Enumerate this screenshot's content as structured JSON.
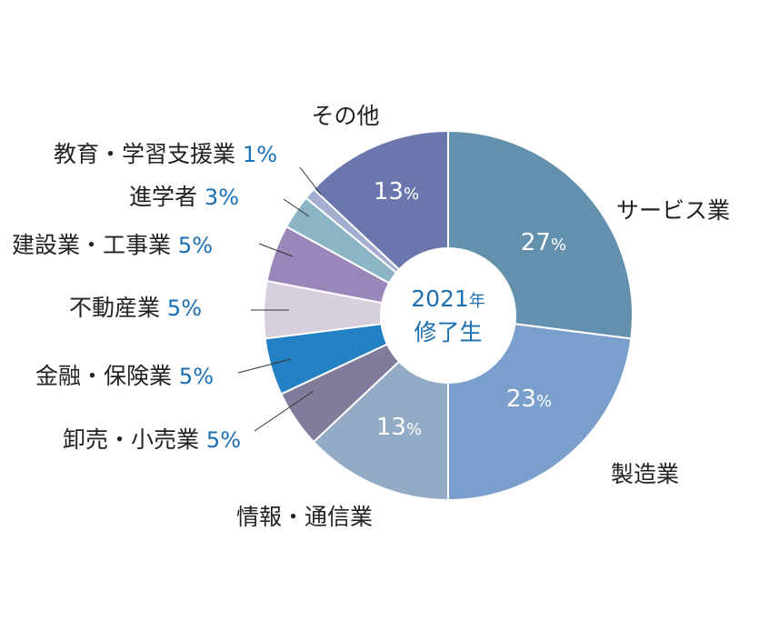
{
  "chart_data": {
    "type": "pie",
    "center_label": {
      "year": "2021",
      "year_suffix": "年",
      "line2": "修了生"
    },
    "slices": [
      {
        "label": "サービス業",
        "value": 27,
        "color": "#6290ad",
        "label_pos": "inside"
      },
      {
        "label": "製造業",
        "value": 23,
        "color": "#7b9fcc",
        "label_pos": "inside"
      },
      {
        "label": "情報・通信業",
        "value": 13,
        "color": "#93abc5",
        "label_pos": "inside"
      },
      {
        "label": "卸売・小売業",
        "value": 5,
        "color": "#837b9b",
        "label_pos": "outside"
      },
      {
        "label": "金融・保険業",
        "value": 5,
        "color": "#2280c3",
        "label_pos": "outside"
      },
      {
        "label": "不動産業",
        "value": 5,
        "color": "#d7d0dc",
        "label_pos": "outside"
      },
      {
        "label": "建設業・工事業",
        "value": 5,
        "color": "#9b86ba",
        "label_pos": "outside"
      },
      {
        "label": "進学者",
        "value": 3,
        "color": "#8bb4c5",
        "label_pos": "outside"
      },
      {
        "label": "教育・学習支援業",
        "value": 1,
        "color": "#a3aed0",
        "label_pos": "outside"
      },
      {
        "label": "その他",
        "value": 13,
        "color": "#6a76ac",
        "label_pos": "inside"
      }
    ],
    "unit": "%"
  }
}
